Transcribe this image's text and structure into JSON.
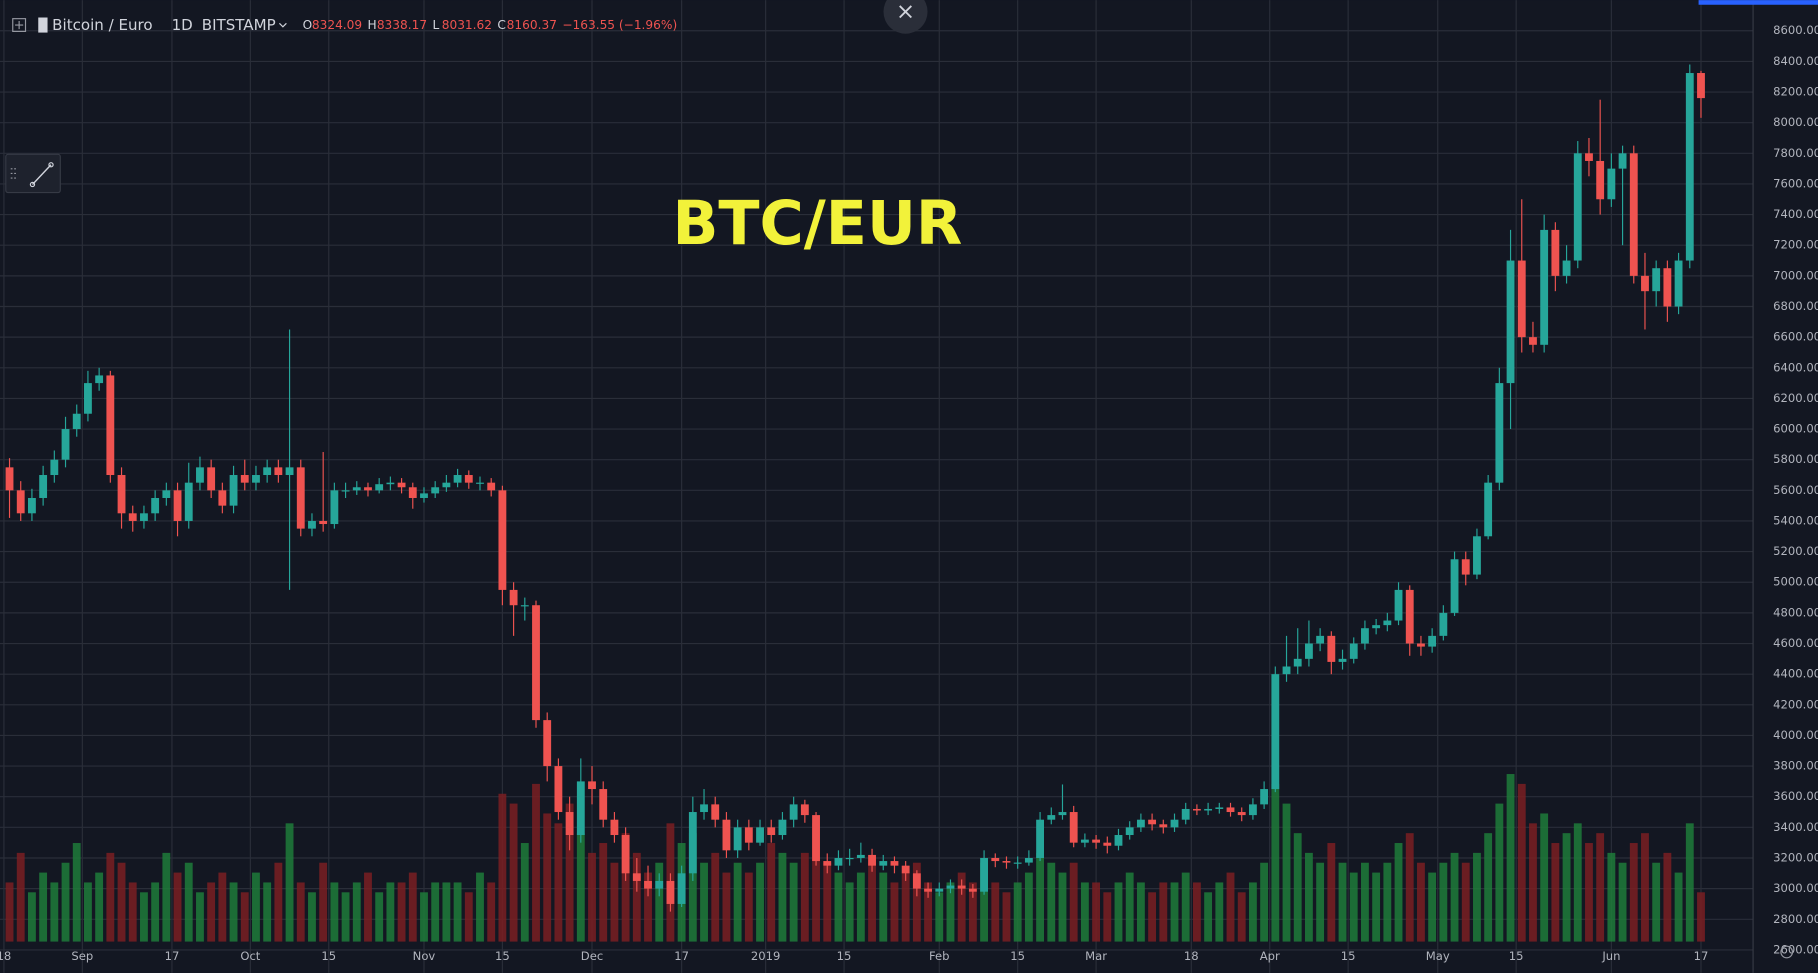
{
  "header": {
    "symbol": "Bitcoin / Euro",
    "interval": "1D",
    "exchange": "BITSTAMP",
    "ohlc": [
      {
        "label": "O",
        "value": "8324.09"
      },
      {
        "label": "H",
        "value": "8338.17"
      },
      {
        "label": "L",
        "value": "8031.62"
      },
      {
        "label": "C",
        "value": "8160.37"
      }
    ],
    "change": "−163.55 (−1.96%)"
  },
  "chart_data": {
    "type": "candlestick",
    "title": "BTC/EUR",
    "up_color": "#26a69a",
    "down_color": "#ef5350",
    "volume_up_color": "#1e7b3a",
    "volume_down_color": "#7a1f22",
    "grid": true,
    "x": [
      1,
      3,
      5,
      7,
      9,
      11,
      13,
      15,
      17,
      19,
      21,
      23,
      25,
      27,
      29,
      31,
      33,
      35,
      37,
      39,
      41,
      43,
      45,
      47,
      49,
      51,
      53,
      55,
      57,
      59,
      61,
      63,
      65,
      67,
      69,
      71,
      73,
      75,
      77,
      79,
      81,
      83,
      85,
      87,
      89,
      91,
      93,
      95,
      97,
      99,
      101,
      103,
      105,
      107,
      109,
      111,
      113,
      115,
      117,
      119,
      121,
      123,
      125,
      127,
      129,
      131,
      133,
      135,
      137,
      139,
      141,
      143,
      145,
      147,
      149,
      151,
      153,
      155,
      157,
      159,
      161,
      163,
      165,
      167,
      169,
      171,
      173,
      175,
      177,
      179,
      181,
      183,
      185,
      187,
      189,
      191,
      193,
      195,
      197,
      199,
      201,
      203,
      205,
      207,
      209,
      211,
      213,
      215,
      217,
      219,
      221,
      223,
      225,
      227,
      229,
      231,
      233,
      235,
      237,
      239,
      241,
      243,
      245,
      247,
      249,
      251,
      253,
      255,
      257,
      259,
      261,
      263,
      265,
      267,
      269,
      271,
      273,
      275,
      277,
      279,
      281,
      283,
      285,
      287,
      289,
      291,
      293,
      295,
      297,
      299,
      301,
      303
    ],
    "open": [
      5750,
      5600,
      5450,
      5550,
      5700,
      5800,
      6000,
      6100,
      6300,
      6350,
      5700,
      5450,
      5400,
      5450,
      5550,
      5600,
      5400,
      5650,
      5750,
      5600,
      5500,
      5700,
      5650,
      5700,
      5750,
      5700,
      5750,
      5350,
      5400,
      5380,
      5600,
      5600,
      5620,
      5600,
      5640,
      5650,
      5620,
      5550,
      5580,
      5620,
      5650,
      5700,
      5650,
      5650,
      5600,
      4950,
      4850,
      4850,
      4100,
      3800,
      3500,
      3350,
      3700,
      3650,
      3450,
      3350,
      3100,
      3050,
      3000,
      3050,
      2900,
      3100,
      3500,
      3550,
      3450,
      3250,
      3400,
      3300,
      3400,
      3350,
      3450,
      3550,
      3480,
      3180,
      3150,
      3200,
      3200,
      3220,
      3150,
      3180,
      3150,
      3100,
      3000,
      2980,
      3000,
      3020,
      3000,
      2980,
      3200,
      3180,
      3170,
      3170,
      3200,
      3450,
      3480,
      3500,
      3300,
      3320,
      3300,
      3280,
      3350,
      3400,
      3450,
      3420,
      3400,
      3450,
      3520,
      3510,
      3520,
      3530,
      3500,
      3480,
      3550,
      3650,
      4400,
      4450,
      4500,
      4600,
      4650,
      4480,
      4500,
      4600,
      4700,
      4720,
      4750,
      4950,
      4600,
      4580,
      4650,
      4800,
      5150,
      5050,
      5300,
      5650,
      6300,
      7100,
      6600,
      6550,
      7300,
      7000,
      7100,
      7800,
      7750,
      7500,
      7700,
      7800,
      7000,
      6900,
      7050,
      6800,
      7100,
      8324.09
    ],
    "high": [
      5810,
      5660,
      5610,
      5760,
      5860,
      6080,
      6160,
      6380,
      6400,
      6380,
      5750,
      5500,
      5500,
      5600,
      5650,
      5650,
      5780,
      5820,
      5800,
      5650,
      5760,
      5800,
      5760,
      5800,
      5800,
      6650,
      5800,
      5450,
      5850,
      5650,
      5650,
      5660,
      5650,
      5680,
      5690,
      5680,
      5650,
      5620,
      5660,
      5700,
      5740,
      5730,
      5690,
      5680,
      5630,
      5000,
      4900,
      4880,
      4150,
      3850,
      3600,
      3850,
      3800,
      3700,
      3500,
      3400,
      3200,
      3150,
      3100,
      3100,
      3150,
      3600,
      3650,
      3600,
      3500,
      3450,
      3450,
      3450,
      3450,
      3500,
      3600,
      3580,
      3500,
      3230,
      3250,
      3260,
      3300,
      3260,
      3220,
      3210,
      3180,
      3120,
      3040,
      3040,
      3060,
      3060,
      3030,
      3250,
      3230,
      3210,
      3210,
      3250,
      3500,
      3530,
      3680,
      3540,
      3360,
      3350,
      3340,
      3390,
      3440,
      3490,
      3490,
      3450,
      3490,
      3560,
      3550,
      3560,
      3560,
      3560,
      3530,
      3590,
      3700,
      4450,
      4650,
      4700,
      4750,
      4700,
      4680,
      4560,
      4640,
      4750,
      4760,
      4800,
      5000,
      4980,
      4650,
      4700,
      4850,
      5200,
      5200,
      5350,
      5700,
      6400,
      7300,
      7500,
      6700,
      7400,
      7350,
      7200,
      7880,
      7900,
      8150,
      7800,
      7850,
      7850,
      7150,
      7100,
      7100,
      7150,
      8380,
      8338.17
    ],
    "low": [
      5420,
      5400,
      5400,
      5500,
      5650,
      5750,
      5950,
      6050,
      6250,
      5650,
      5350,
      5330,
      5350,
      5400,
      5500,
      5300,
      5350,
      5600,
      5550,
      5450,
      5450,
      5600,
      5600,
      5650,
      5650,
      4950,
      5300,
      5300,
      5330,
      5350,
      5550,
      5570,
      5560,
      5580,
      5600,
      5580,
      5480,
      5520,
      5550,
      5590,
      5620,
      5610,
      5600,
      5560,
      4850,
      4650,
      4750,
      4050,
      3700,
      3450,
      3250,
      3300,
      3550,
      3400,
      3300,
      3050,
      2980,
      2950,
      2950,
      2850,
      2880,
      3050,
      3450,
      3400,
      3200,
      3200,
      3250,
      3280,
      3300,
      3320,
      3400,
      3430,
      3150,
      3100,
      3120,
      3150,
      3170,
      3110,
      3120,
      3100,
      3050,
      2950,
      2940,
      2950,
      2970,
      2960,
      2940,
      2960,
      3140,
      3130,
      3130,
      3150,
      3180,
      3420,
      3450,
      3270,
      3270,
      3260,
      3230,
      3250,
      3320,
      3370,
      3380,
      3360,
      3370,
      3420,
      3480,
      3480,
      3490,
      3470,
      3440,
      3450,
      3520,
      3630,
      4350,
      4400,
      4450,
      4550,
      4400,
      4430,
      4470,
      4560,
      4660,
      4680,
      4720,
      4520,
      4520,
      4540,
      4620,
      4780,
      4980,
      5020,
      5280,
      5600,
      6000,
      6500,
      6500,
      6500,
      6900,
      6950,
      7050,
      7650,
      7400,
      7450,
      7200,
      6950,
      6650,
      6800,
      6700,
      6750,
      7050,
      8031.62
    ],
    "close": [
      5600,
      5450,
      5550,
      5700,
      5800,
      6000,
      6100,
      6300,
      6350,
      5700,
      5450,
      5400,
      5450,
      5550,
      5600,
      5400,
      5650,
      5750,
      5600,
      5500,
      5700,
      5650,
      5700,
      5750,
      5700,
      5750,
      5350,
      5400,
      5380,
      5600,
      5600,
      5620,
      5600,
      5640,
      5650,
      5620,
      5550,
      5580,
      5620,
      5650,
      5700,
      5650,
      5650,
      5600,
      4950,
      4850,
      4850,
      4100,
      3800,
      3500,
      3350,
      3700,
      3650,
      3450,
      3350,
      3100,
      3050,
      3000,
      3050,
      2900,
      3100,
      3500,
      3550,
      3450,
      3250,
      3400,
      3300,
      3400,
      3350,
      3450,
      3550,
      3480,
      3180,
      3150,
      3200,
      3200,
      3220,
      3150,
      3180,
      3150,
      3100,
      3000,
      2980,
      3000,
      3020,
      3000,
      2980,
      3200,
      3180,
      3170,
      3170,
      3200,
      3450,
      3480,
      3500,
      3300,
      3320,
      3300,
      3280,
      3350,
      3400,
      3450,
      3420,
      3400,
      3450,
      3520,
      3510,
      3520,
      3530,
      3500,
      3480,
      3550,
      3650,
      4400,
      4450,
      4500,
      4600,
      4650,
      4480,
      4500,
      4600,
      4700,
      4720,
      4750,
      4950,
      4600,
      4580,
      4650,
      4800,
      5150,
      5050,
      5300,
      5650,
      6300,
      7100,
      6600,
      6550,
      7300,
      7000,
      7100,
      7800,
      7750,
      7500,
      7700,
      7800,
      7000,
      6900,
      7050,
      6800,
      7100,
      8324,
      8160.37
    ],
    "volume": [
      30,
      45,
      25,
      35,
      30,
      40,
      50,
      30,
      35,
      45,
      40,
      30,
      25,
      30,
      45,
      35,
      40,
      25,
      30,
      35,
      30,
      25,
      35,
      30,
      40,
      60,
      30,
      25,
      40,
      30,
      25,
      30,
      35,
      25,
      30,
      30,
      35,
      25,
      30,
      30,
      30,
      25,
      35,
      30,
      75,
      70,
      50,
      80,
      65,
      60,
      70,
      55,
      45,
      50,
      40,
      55,
      45,
      35,
      40,
      60,
      50,
      55,
      40,
      45,
      35,
      40,
      35,
      40,
      50,
      45,
      40,
      45,
      60,
      40,
      35,
      30,
      35,
      40,
      35,
      30,
      35,
      40,
      30,
      25,
      30,
      35,
      30,
      40,
      30,
      25,
      30,
      35,
      45,
      40,
      35,
      40,
      30,
      30,
      25,
      30,
      35,
      30,
      25,
      30,
      30,
      35,
      30,
      25,
      30,
      35,
      25,
      30,
      40,
      80,
      70,
      55,
      45,
      40,
      50,
      40,
      35,
      40,
      35,
      40,
      50,
      55,
      40,
      35,
      40,
      45,
      40,
      45,
      55,
      70,
      85,
      80,
      60,
      65,
      50,
      55,
      60,
      50,
      55,
      45,
      40,
      50,
      55,
      40,
      45,
      35,
      60,
      25
    ],
    "volume_lim": [
      0,
      100
    ],
    "xlim": [
      -0.7,
      312.3
    ],
    "xticks": [
      {
        "value": 0,
        "label": "18"
      },
      {
        "value": 14,
        "label": "Sep"
      },
      {
        "value": 30,
        "label": "17"
      },
      {
        "value": 44,
        "label": "Oct"
      },
      {
        "value": 58,
        "label": "15"
      },
      {
        "value": 75,
        "label": "Nov"
      },
      {
        "value": 89,
        "label": "15"
      },
      {
        "value": 105,
        "label": "Dec"
      },
      {
        "value": 121,
        "label": "17"
      },
      {
        "value": 136,
        "label": "2019"
      },
      {
        "value": 150,
        "label": "15"
      },
      {
        "value": 167,
        "label": "Feb"
      },
      {
        "value": 181,
        "label": "15"
      },
      {
        "value": 195,
        "label": "Mar"
      },
      {
        "value": 212,
        "label": "18"
      },
      {
        "value": 226,
        "label": "Apr"
      },
      {
        "value": 240,
        "label": "15"
      },
      {
        "value": 256,
        "label": "May"
      },
      {
        "value": 270,
        "label": "15"
      },
      {
        "value": 287,
        "label": "Jun"
      },
      {
        "value": 303,
        "label": "17"
      }
    ],
    "ylim": [
      2450,
      8800
    ],
    "yticks": [
      {
        "value": 2600,
        "label": "2600.00"
      },
      {
        "value": 2800,
        "label": "2800.00"
      },
      {
        "value": 3000,
        "label": "3000.00"
      },
      {
        "value": 3200,
        "label": "3200.00"
      },
      {
        "value": 3400,
        "label": "3400.00"
      },
      {
        "value": 3600,
        "label": "3600.00"
      },
      {
        "value": 3800,
        "label": "3800.00"
      },
      {
        "value": 4000,
        "label": "4000.00"
      },
      {
        "value": 4200,
        "label": "4200.00"
      },
      {
        "value": 4400,
        "label": "4400.00"
      },
      {
        "value": 4600,
        "label": "4600.00"
      },
      {
        "value": 4800,
        "label": "4800.00"
      },
      {
        "value": 5000,
        "label": "5000.00"
      },
      {
        "value": 5200,
        "label": "5200.00"
      },
      {
        "value": 5400,
        "label": "5400.00"
      },
      {
        "value": 5600,
        "label": "5600.00"
      },
      {
        "value": 5800,
        "label": "5800.00"
      },
      {
        "value": 6000,
        "label": "6000.00"
      },
      {
        "value": 6200,
        "label": "6200.00"
      },
      {
        "value": 6400,
        "label": "6400.00"
      },
      {
        "value": 6600,
        "label": "6600.00"
      },
      {
        "value": 6800,
        "label": "6800.00"
      },
      {
        "value": 7000,
        "label": "7000.00"
      },
      {
        "value": 7200,
        "label": "7200.00"
      },
      {
        "value": 7400,
        "label": "7400.00"
      },
      {
        "value": 7600,
        "label": "7600.00"
      },
      {
        "value": 7800,
        "label": "7800.00"
      },
      {
        "value": 8000,
        "label": "8000.00"
      },
      {
        "value": 8200,
        "label": "8200.00"
      },
      {
        "value": 8400,
        "label": "8400.00"
      },
      {
        "value": 8600,
        "label": "8600.00"
      }
    ]
  }
}
